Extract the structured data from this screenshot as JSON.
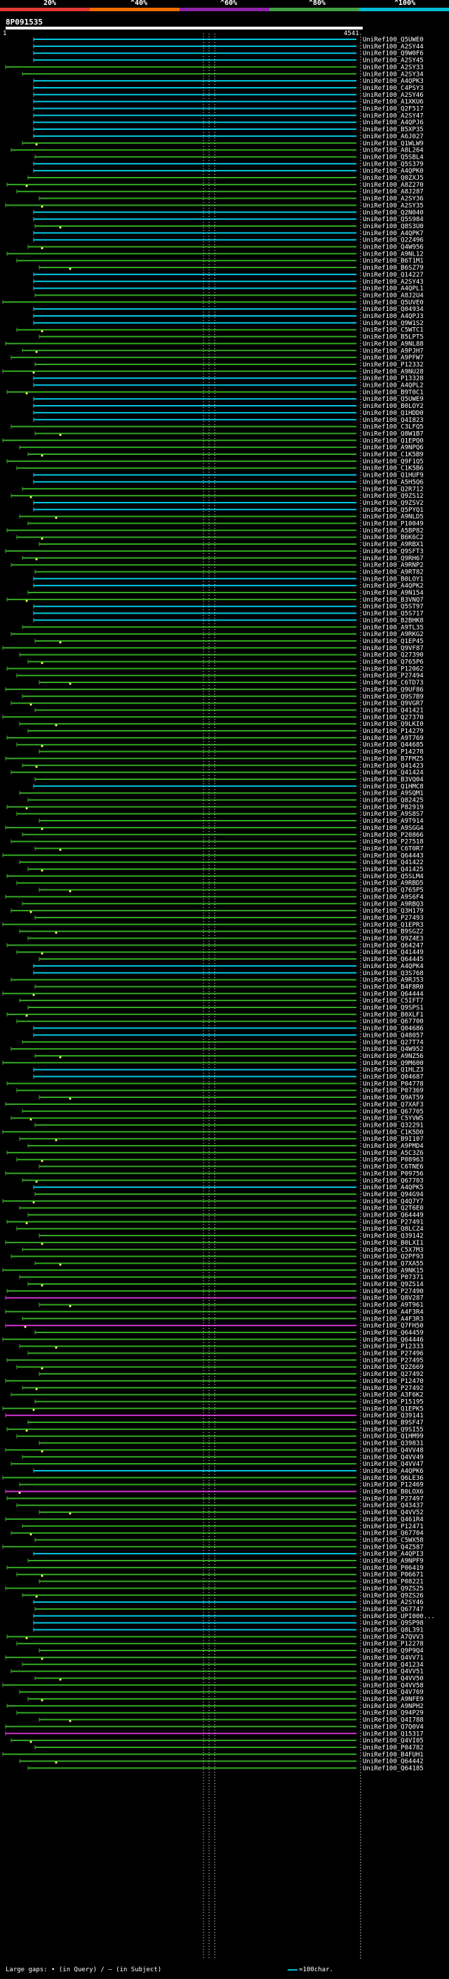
{
  "scale": {
    "labels": [
      "20%",
      "^40%",
      "^60%",
      "^80%",
      "^100%"
    ],
    "colors": [
      "#e53935",
      "#ef6c00",
      "#8e24aa",
      "#43a047",
      "#00bcd4"
    ]
  },
  "query": {
    "title": "8P091535",
    "start": "1",
    "end": "4541"
  },
  "legend": {
    "text": "Large gaps: • (in Query) / – (in Subject)",
    "scale_text": "=100char."
  },
  "hits": [
    {
      "label": "UniRef100_Q5UWE0",
      "color": "cyan"
    },
    {
      "label": "UniRef100_A2SY44",
      "color": "cyan"
    },
    {
      "label": "UniRef100_Q9W0F6",
      "color": "cyan"
    },
    {
      "label": "UniRef100_A2SY45",
      "color": "cyan"
    },
    {
      "label": "UniRef100_A2SY33",
      "color": "green"
    },
    {
      "label": "UniRef100_A2SY34",
      "color": "green"
    },
    {
      "label": "UniRef100_A4QPK3",
      "color": "cyan"
    },
    {
      "label": "UniRef100_C4PSY3",
      "color": "cyan"
    },
    {
      "label": "UniRef100_A2SY46",
      "color": "cyan"
    },
    {
      "label": "UniRef100_A1XKU6",
      "color": "cyan"
    },
    {
      "label": "UniRef100_Q2F517",
      "color": "cyan"
    },
    {
      "label": "UniRef100_A2SY47",
      "color": "cyan"
    },
    {
      "label": "UniRef100_A4QPJ6",
      "color": "cyan"
    },
    {
      "label": "UniRef100_B5XP35",
      "color": "cyan"
    },
    {
      "label": "UniRef100_A6J027",
      "color": "cyan"
    },
    {
      "label": "UniRef100_Q1WLW9",
      "color": "green"
    },
    {
      "label": "UniRef100_A8L264",
      "color": "green"
    },
    {
      "label": "UniRef100_Q5SBL4",
      "color": "green"
    },
    {
      "label": "UniRef100_Q5S379",
      "color": "cyan"
    },
    {
      "label": "UniRef100_A4QPK0",
      "color": "cyan"
    },
    {
      "label": "UniRef100_Q0ZXJ5",
      "color": "green"
    },
    {
      "label": "UniRef100_A8Z270",
      "color": "green"
    },
    {
      "label": "UniRef100_A8J287",
      "color": "green"
    },
    {
      "label": "UniRef100_A2SY36",
      "color": "green"
    },
    {
      "label": "UniRef100_A2SY35",
      "color": "green"
    },
    {
      "label": "UniRef100_Q2N040",
      "color": "cyan"
    },
    {
      "label": "UniRef100_Q5S984",
      "color": "cyan"
    },
    {
      "label": "UniRef100_Q8S3U0",
      "color": "green"
    },
    {
      "label": "UniRef100_A4QPK7",
      "color": "cyan"
    },
    {
      "label": "UniRef100_Q2Z496",
      "color": "cyan"
    },
    {
      "label": "UniRef100_Q4W956",
      "color": "green"
    },
    {
      "label": "UniRef100_A9NL12",
      "color": "green"
    },
    {
      "label": "UniRef100_B6T1M1",
      "color": "green"
    },
    {
      "label": "UniRef100_B6SZ79",
      "color": "green"
    },
    {
      "label": "UniRef100_Q14227",
      "color": "cyan"
    },
    {
      "label": "UniRef100_A2SY43",
      "color": "cyan"
    },
    {
      "label": "UniRef100_A4QPL1",
      "color": "cyan"
    },
    {
      "label": "UniRef100_A8J2U4",
      "color": "green"
    },
    {
      "label": "UniRef100_Q5UVE0",
      "color": "green"
    },
    {
      "label": "UniRef100_Q04934",
      "color": "cyan"
    },
    {
      "label": "UniRef100_A4QPJ3",
      "color": "cyan"
    },
    {
      "label": "UniRef100_Q9W1S2",
      "color": "cyan"
    },
    {
      "label": "UniRef100_C5WTC1",
      "color": "green"
    },
    {
      "label": "UniRef100_B5LPT5",
      "color": "green"
    },
    {
      "label": "UniRef100_A9NL88",
      "color": "green"
    },
    {
      "label": "UniRef100_A9PJH7",
      "color": "green"
    },
    {
      "label": "UniRef100_A9PFW7",
      "color": "green"
    },
    {
      "label": "UniRef100_P12332",
      "color": "green"
    },
    {
      "label": "UniRef100_A9NU28",
      "color": "green"
    },
    {
      "label": "UniRef100_P13328",
      "color": "cyan"
    },
    {
      "label": "UniRef100_A4QPL2",
      "color": "cyan"
    },
    {
      "label": "UniRef100_B9T0C1",
      "color": "green"
    },
    {
      "label": "UniRef100_Q5UWE9",
      "color": "cyan"
    },
    {
      "label": "UniRef100_B0LOY2",
      "color": "cyan"
    },
    {
      "label": "UniRef100_Q1HDD0",
      "color": "cyan"
    },
    {
      "label": "UniRef100_Q4I823",
      "color": "cyan"
    },
    {
      "label": "UniRef100_C3LFQ5",
      "color": "green"
    },
    {
      "label": "UniRef100_Q8W1B7",
      "color": "green"
    },
    {
      "label": "UniRef100_Q1EPQ0",
      "color": "green"
    },
    {
      "label": "UniRef100_A9NPQ6",
      "color": "green"
    },
    {
      "label": "UniRef100_C1K5B9",
      "color": "green"
    },
    {
      "label": "UniRef100_Q9F1Q5",
      "color": "green"
    },
    {
      "label": "UniRef100_C1K5B6",
      "color": "green"
    },
    {
      "label": "UniRef100_Q1HUF9",
      "color": "cyan"
    },
    {
      "label": "UniRef100_A5H5Q6",
      "color": "cyan"
    },
    {
      "label": "UniRef100_Q2R712",
      "color": "green"
    },
    {
      "label": "UniRef100_Q9ZS12",
      "color": "green"
    },
    {
      "label": "UniRef100_Q9ZSV2",
      "color": "cyan"
    },
    {
      "label": "UniRef100_Q5PYQ1",
      "color": "cyan"
    },
    {
      "label": "UniRef100_A9NLD5",
      "color": "green"
    },
    {
      "label": "UniRef100_P10049",
      "color": "green"
    },
    {
      "label": "UniRef100_A5BP82",
      "color": "green"
    },
    {
      "label": "UniRef100_B6K6C2",
      "color": "green"
    },
    {
      "label": "UniRef100_A9RBX1",
      "color": "green"
    },
    {
      "label": "UniRef100_Q9SFT3",
      "color": "green"
    },
    {
      "label": "UniRef100_Q9RH67",
      "color": "green"
    },
    {
      "label": "UniRef100_A9RNP2",
      "color": "green"
    },
    {
      "label": "UniRef100_A9RT82",
      "color": "green"
    },
    {
      "label": "UniRef100_B0LOY1",
      "color": "cyan"
    },
    {
      "label": "UniRef100_A4QPK2",
      "color": "cyan"
    },
    {
      "label": "UniRef100_A9N154",
      "color": "green"
    },
    {
      "label": "UniRef100_B3VNQ7",
      "color": "green"
    },
    {
      "label": "UniRef100_Q5ST97",
      "color": "cyan"
    },
    {
      "label": "UniRef100_Q5S717",
      "color": "cyan"
    },
    {
      "label": "UniRef100_B2BHK8",
      "color": "cyan"
    },
    {
      "label": "UniRef100_A9TL35",
      "color": "green"
    },
    {
      "label": "UniRef100_A9RKG2",
      "color": "green"
    },
    {
      "label": "UniRef100_Q1EP45",
      "color": "green"
    },
    {
      "label": "UniRef100_Q9VF87",
      "color": "green"
    },
    {
      "label": "UniRef100_Q27390",
      "color": "green"
    },
    {
      "label": "UniRef100_Q765P6",
      "color": "green"
    },
    {
      "label": "UniRef100_P12062",
      "color": "green"
    },
    {
      "label": "UniRef100_P27494",
      "color": "green"
    },
    {
      "label": "UniRef100_C6TD73",
      "color": "green"
    },
    {
      "label": "UniRef100_Q9UF86",
      "color": "green"
    },
    {
      "label": "UniRef100_Q9S7B9",
      "color": "green"
    },
    {
      "label": "UniRef100_Q9VGR7",
      "color": "green"
    },
    {
      "label": "UniRef100_Q41421",
      "color": "green"
    },
    {
      "label": "UniRef100_Q27370",
      "color": "green"
    },
    {
      "label": "UniRef100_Q9LKI0",
      "color": "green"
    },
    {
      "label": "UniRef100_P14279",
      "color": "green"
    },
    {
      "label": "UniRef100_A9T769",
      "color": "green"
    },
    {
      "label": "UniRef100_Q44685",
      "color": "green"
    },
    {
      "label": "UniRef100_P14278",
      "color": "green"
    },
    {
      "label": "UniRef100_B7FMZ5",
      "color": "green"
    },
    {
      "label": "UniRef100_Q41423",
      "color": "green"
    },
    {
      "label": "UniRef100_Q41424",
      "color": "green"
    },
    {
      "label": "UniRef100_B3VQ04",
      "color": "green"
    },
    {
      "label": "UniRef100_Q1HMC8",
      "color": "cyan"
    },
    {
      "label": "UniRef100_A9SQM1",
      "color": "green"
    },
    {
      "label": "UniRef100_Q82425",
      "color": "green"
    },
    {
      "label": "UniRef100_P82919",
      "color": "green"
    },
    {
      "label": "UniRef100_A9S8S7",
      "color": "green"
    },
    {
      "label": "UniRef100_A9T914",
      "color": "green"
    },
    {
      "label": "UniRef100_A9SGG4",
      "color": "green"
    },
    {
      "label": "UniRef100_P20866",
      "color": "green"
    },
    {
      "label": "UniRef100_P27518",
      "color": "green"
    },
    {
      "label": "UniRef100_C6T0R7",
      "color": "green"
    },
    {
      "label": "UniRef100_Q64443",
      "color": "green"
    },
    {
      "label": "UniRef100_Q41422",
      "color": "green"
    },
    {
      "label": "UniRef100_Q41425",
      "color": "green"
    },
    {
      "label": "UniRef100_Q5SLM4",
      "color": "green"
    },
    {
      "label": "UniRef100_A9RBD5",
      "color": "green"
    },
    {
      "label": "UniRef100_Q765P5",
      "color": "green"
    },
    {
      "label": "UniRef100_A9S6F4",
      "color": "green"
    },
    {
      "label": "UniRef100_A9RBQ3",
      "color": "green"
    },
    {
      "label": "UniRef100_Q3H179",
      "color": "green"
    },
    {
      "label": "UniRef100_P27493",
      "color": "green"
    },
    {
      "label": "UniRef100_Q1EPR3",
      "color": "green"
    },
    {
      "label": "UniRef100_B9SGZ2",
      "color": "green"
    },
    {
      "label": "UniRef100_Q9Z4E3",
      "color": "green"
    },
    {
      "label": "UniRef100_Q64247",
      "color": "green"
    },
    {
      "label": "UniRef100_Q41449",
      "color": "green"
    },
    {
      "label": "UniRef100_Q64445",
      "color": "green"
    },
    {
      "label": "UniRef100_A4QPK4",
      "color": "cyan"
    },
    {
      "label": "UniRef100_Q3S768",
      "color": "cyan"
    },
    {
      "label": "UniRef100_A9RJ53",
      "color": "green"
    },
    {
      "label": "UniRef100_B4F8R0",
      "color": "green"
    },
    {
      "label": "UniRef100_Q64444",
      "color": "green"
    },
    {
      "label": "UniRef100_C5IFT7",
      "color": "green"
    },
    {
      "label": "UniRef100_Q9SPS1",
      "color": "green"
    },
    {
      "label": "UniRef100_B0XLF1",
      "color": "green"
    },
    {
      "label": "UniRef100_Q67700",
      "color": "green"
    },
    {
      "label": "UniRef100_Q04686",
      "color": "cyan"
    },
    {
      "label": "UniRef100_Q48057",
      "color": "cyan"
    },
    {
      "label": "UniRef100_Q27T74",
      "color": "green"
    },
    {
      "label": "UniRef100_Q4W952",
      "color": "green"
    },
    {
      "label": "UniRef100_A9NZ56",
      "color": "green"
    },
    {
      "label": "UniRef100_Q9M600",
      "color": "green"
    },
    {
      "label": "UniRef100_Q1HLZ3",
      "color": "cyan"
    },
    {
      "label": "UniRef100_Q04687",
      "color": "cyan"
    },
    {
      "label": "UniRef100_P04778",
      "color": "green"
    },
    {
      "label": "UniRef100_P07369",
      "color": "green"
    },
    {
      "label": "UniRef100_Q9AT59",
      "color": "green"
    },
    {
      "label": "UniRef100_Q7XAF3",
      "color": "green"
    },
    {
      "label": "UniRef100_Q67705",
      "color": "green"
    },
    {
      "label": "UniRef100_C5YVW5",
      "color": "green"
    },
    {
      "label": "UniRef100_Q32291",
      "color": "green"
    },
    {
      "label": "UniRef100_C1K5D0",
      "color": "green"
    },
    {
      "label": "UniRef100_B9I107",
      "color": "green"
    },
    {
      "label": "UniRef100_A9PMD4",
      "color": "green"
    },
    {
      "label": "UniRef100_A5C3Z6",
      "color": "green"
    },
    {
      "label": "UniRef100_P08963",
      "color": "green"
    },
    {
      "label": "UniRef100_C6TNE6",
      "color": "green"
    },
    {
      "label": "UniRef100_P09756",
      "color": "green"
    },
    {
      "label": "UniRef100_Q67703",
      "color": "green"
    },
    {
      "label": "UniRef100_A4QPK5",
      "color": "cyan"
    },
    {
      "label": "UniRef100_Q94G94",
      "color": "green"
    },
    {
      "label": "UniRef100_Q4Q7Y7",
      "color": "green"
    },
    {
      "label": "UniRef100_Q2T6E0",
      "color": "green"
    },
    {
      "label": "UniRef100_Q64449",
      "color": "green"
    },
    {
      "label": "UniRef100_P27491",
      "color": "green"
    },
    {
      "label": "UniRef100_Q8LCZ4",
      "color": "green"
    },
    {
      "label": "UniRef100_Q39142",
      "color": "green"
    },
    {
      "label": "UniRef100_B0LXI1",
      "color": "green"
    },
    {
      "label": "UniRef100_C5X7M3",
      "color": "green"
    },
    {
      "label": "UniRef100_Q2PF93",
      "color": "green"
    },
    {
      "label": "UniRef100_Q7XA55",
      "color": "green"
    },
    {
      "label": "UniRef100_A9NK15",
      "color": "green"
    },
    {
      "label": "UniRef100_P07371",
      "color": "green"
    },
    {
      "label": "UniRef100_Q9ZS14",
      "color": "green"
    },
    {
      "label": "UniRef100_P27490",
      "color": "green"
    },
    {
      "label": "UniRef100_Q8V287",
      "color": "magenta"
    },
    {
      "label": "UniRef100_A9T961",
      "color": "green"
    },
    {
      "label": "UniRef100_A4F3R4",
      "color": "green"
    },
    {
      "label": "UniRef100_A4F3R3",
      "color": "green"
    },
    {
      "label": "UniRef100_Q7FH50",
      "color": "magenta"
    },
    {
      "label": "UniRef100_Q64459",
      "color": "green"
    },
    {
      "label": "UniRef100_Q64446",
      "color": "green"
    },
    {
      "label": "UniRef100_P12333",
      "color": "green"
    },
    {
      "label": "UniRef100_P27496",
      "color": "green"
    },
    {
      "label": "UniRef100_P27495",
      "color": "green"
    },
    {
      "label": "UniRef100_Q2Z669",
      "color": "green"
    },
    {
      "label": "UniRef100_Q27492",
      "color": "green"
    },
    {
      "label": "UniRef100_P12470",
      "color": "green"
    },
    {
      "label": "UniRef100_P27492",
      "color": "green"
    },
    {
      "label": "UniRef100_A3F6K2",
      "color": "green"
    },
    {
      "label": "UniRef100_P15195",
      "color": "green"
    },
    {
      "label": "UniRef100_Q1EPK5",
      "color": "green"
    },
    {
      "label": "UniRef100_Q39141",
      "color": "magenta"
    },
    {
      "label": "UniRef100_B9SF47",
      "color": "green"
    },
    {
      "label": "UniRef100_Q9SI55",
      "color": "green"
    },
    {
      "label": "UniRef100_Q1HM99",
      "color": "green"
    },
    {
      "label": "UniRef100_Q39831",
      "color": "green"
    },
    {
      "label": "UniRef100_Q4VV48",
      "color": "green"
    },
    {
      "label": "UniRef100_Q4VV49",
      "color": "green"
    },
    {
      "label": "UniRef100_Q4VV47",
      "color": "green"
    },
    {
      "label": "UniRef100_A4QPK6",
      "color": "cyan"
    },
    {
      "label": "UniRef100_Q6LE36",
      "color": "green"
    },
    {
      "label": "UniRef100_P12469",
      "color": "green"
    },
    {
      "label": "UniRef100_B0LOX6",
      "color": "magenta"
    },
    {
      "label": "UniRef100_P27497",
      "color": "green"
    },
    {
      "label": "UniRef100_Q43437",
      "color": "green"
    },
    {
      "label": "UniRef100_Q4VV52",
      "color": "green"
    },
    {
      "label": "UniRef100_Q461R4",
      "color": "green"
    },
    {
      "label": "UniRef100_P12471",
      "color": "green"
    },
    {
      "label": "UniRef100_Q67704",
      "color": "green"
    },
    {
      "label": "UniRef100_C5WX58",
      "color": "green"
    },
    {
      "label": "UniRef100_Q4Z587",
      "color": "green"
    },
    {
      "label": "UniRef100_A4QPI3",
      "color": "cyan"
    },
    {
      "label": "UniRef100_A9NPF9",
      "color": "green"
    },
    {
      "label": "UniRef100_P06419",
      "color": "green"
    },
    {
      "label": "UniRef100_P06671",
      "color": "green"
    },
    {
      "label": "UniRef100_P08221",
      "color": "green"
    },
    {
      "label": "UniRef100_Q9ZS25",
      "color": "green"
    },
    {
      "label": "UniRef100_Q9ZS26",
      "color": "green"
    },
    {
      "label": "UniRef100_A2SY46",
      "color": "cyan"
    },
    {
      "label": "UniRef100_Q67747",
      "color": "green"
    },
    {
      "label": "UniRef100_UPI000...",
      "color": "cyan"
    },
    {
      "label": "UniRef100_Q9SP98",
      "color": "cyan"
    },
    {
      "label": "UniRef100_Q8L391",
      "color": "cyan"
    },
    {
      "label": "UniRef100_A7QVV3",
      "color": "green"
    },
    {
      "label": "UniRef100_P12278",
      "color": "green"
    },
    {
      "label": "UniRef100_Q9P9Q4",
      "color": "green"
    },
    {
      "label": "UniRef100_Q4VV71",
      "color": "green"
    },
    {
      "label": "UniRef100_Q41234",
      "color": "green"
    },
    {
      "label": "UniRef100_Q4VV51",
      "color": "green"
    },
    {
      "label": "UniRef100_Q4VV50",
      "color": "green"
    },
    {
      "label": "UniRef100_Q4VV58",
      "color": "green"
    },
    {
      "label": "UniRef100_Q4V769",
      "color": "green"
    },
    {
      "label": "UniRef100_A9NFE9",
      "color": "green"
    },
    {
      "label": "UniRef100_A9NPH2",
      "color": "green"
    },
    {
      "label": "UniRef100_Q94P29",
      "color": "green"
    },
    {
      "label": "UniRef100_Q4I788",
      "color": "green"
    },
    {
      "label": "UniRef100_Q7Q0V4",
      "color": "green"
    },
    {
      "label": "UniRef100_Q15317",
      "color": "magenta"
    },
    {
      "label": "UniRef100_Q4VI05",
      "color": "green"
    },
    {
      "label": "UniRef100_P04782",
      "color": "green"
    },
    {
      "label": "UniRef100_B4FUH1",
      "color": "green"
    },
    {
      "label": "UniRef100_Q64442",
      "color": "green"
    },
    {
      "label": "UniRef100_Q64185",
      "color": "green"
    }
  ]
}
